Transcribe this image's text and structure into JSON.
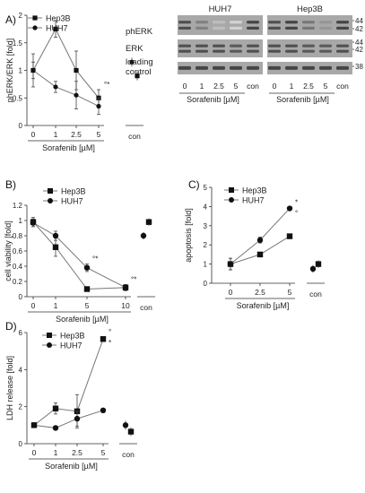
{
  "figure": {
    "panels": [
      {
        "id": "A",
        "label": "A)"
      },
      {
        "id": "B",
        "label": "B)"
      },
      {
        "id": "C",
        "label": "C)"
      },
      {
        "id": "D",
        "label": "D)"
      }
    ]
  },
  "chart_data": [
    {
      "panel": "A",
      "type": "line",
      "ylabel": "phERK/ERK [fold]",
      "xlabel": "Sorafenib [µM]",
      "categories": [
        "0",
        "1",
        "2.5",
        "5"
      ],
      "control_label": "con",
      "ylim": [
        0,
        2
      ],
      "yticks": [
        "0",
        "0.5",
        "1",
        "1.5",
        "2"
      ],
      "legend": [
        "Hep3B",
        "HUH7"
      ],
      "series": [
        {
          "name": "Hep3B",
          "marker": "square",
          "values": [
            1.0,
            1.75,
            1.0,
            0.5
          ],
          "err": [
            0.3,
            0.15,
            0.35,
            0.15
          ],
          "control": 0.9
        },
        {
          "name": "HUH7",
          "marker": "circle",
          "values": [
            1.0,
            0.7,
            0.55,
            0.35
          ],
          "err": [
            0.15,
            0.1,
            0.25,
            0.15
          ],
          "control": 1.15
        }
      ],
      "annotations": [
        {
          "x": "5",
          "text": "°*"
        }
      ]
    },
    {
      "panel": "B",
      "type": "line",
      "ylabel": "cell viability [fold]",
      "xlabel": "Sorafenib [µM]",
      "categories": [
        "0",
        "1",
        "5",
        "10"
      ],
      "control_label": "con",
      "ylim": [
        0,
        1.2
      ],
      "yticks": [
        "0",
        "0.2",
        "0.4",
        "0.6",
        "0.8",
        "1",
        "1.2"
      ],
      "legend": [
        "Hep3B",
        "HUH7"
      ],
      "series": [
        {
          "name": "Hep3B",
          "marker": "square",
          "values": [
            0.98,
            0.65,
            0.1,
            0.12
          ],
          "err": [
            0.06,
            0.12,
            0.02,
            0.04
          ],
          "control": 0.98
        },
        {
          "name": "HUH7",
          "marker": "circle",
          "values": [
            0.97,
            0.8,
            0.38,
            0.12
          ],
          "err": [
            0.05,
            0.06,
            0.05,
            0.04
          ],
          "control": 0.8
        }
      ],
      "annotations": [
        {
          "x": "5",
          "text": "°*"
        },
        {
          "x": "10",
          "text": "°*"
        }
      ]
    },
    {
      "panel": "C",
      "type": "line",
      "ylabel": "apoptosis [fold]",
      "xlabel": "Sorafenib [µM]",
      "categories": [
        "0",
        "2.5",
        "5"
      ],
      "control_label": "con",
      "ylim": [
        0,
        5
      ],
      "yticks": [
        "0",
        "1",
        "2",
        "3",
        "4",
        "5"
      ],
      "legend": [
        "Hep3B",
        "HUH7"
      ],
      "series": [
        {
          "name": "Hep3B",
          "marker": "square",
          "values": [
            1.0,
            1.5,
            2.45
          ],
          "err": [
            0.3,
            0.1,
            0.05
          ],
          "control": 1.0
        },
        {
          "name": "HUH7",
          "marker": "circle",
          "values": [
            1.0,
            2.25,
            3.9
          ],
          "err": [
            0.3,
            0.15,
            0.05
          ],
          "control": 0.75
        }
      ],
      "annotations": [
        {
          "x": "5",
          "text": "*"
        },
        {
          "x": "5",
          "text": "°"
        }
      ]
    },
    {
      "panel": "D",
      "type": "line",
      "ylabel": "LDH release [fold]",
      "xlabel": "Sorafenib [µM]",
      "categories": [
        "0",
        "1",
        "2.5",
        "5"
      ],
      "control_label": "con",
      "ylim": [
        0,
        6
      ],
      "yticks": [
        "0",
        "2",
        "4",
        "6"
      ],
      "legend": [
        "Hep3B",
        "HUH7"
      ],
      "series": [
        {
          "name": "Hep3B",
          "marker": "square",
          "values": [
            1.0,
            1.9,
            1.75,
            5.65
          ],
          "err": [
            0.05,
            0.3,
            0.9,
            0.1
          ],
          "control": 0.65
        },
        {
          "name": "HUH7",
          "marker": "circle",
          "values": [
            1.0,
            0.85,
            1.35,
            1.8
          ],
          "err": [
            0.05,
            0.05,
            0.4,
            0.05
          ],
          "control": 1.0
        }
      ],
      "annotations": [
        {
          "x": "5",
          "text": "°"
        },
        {
          "x": "5",
          "text": "*"
        }
      ]
    }
  ],
  "blot": {
    "groups": [
      "HUH7",
      "Hep3B"
    ],
    "rows": [
      "phERK",
      "ERK",
      "loading control"
    ],
    "lanes": [
      "0",
      "1",
      "2.5",
      "5",
      "con"
    ],
    "xlabel": "Sorafenib [µM]",
    "mw": [
      "44",
      "42",
      "44",
      "42",
      "38"
    ],
    "intensity": {
      "HUH7": {
        "phERK": [
          0.8,
          0.55,
          0.25,
          0.15,
          0.85
        ],
        "ERK": [
          0.8,
          0.8,
          0.8,
          0.75,
          0.8
        ],
        "loading control": [
          0.85,
          0.85,
          0.85,
          0.85,
          0.85
        ]
      },
      "Hep3B": {
        "phERK": [
          0.8,
          0.85,
          0.6,
          0.45,
          0.85
        ],
        "ERK": [
          0.8,
          0.8,
          0.75,
          0.75,
          0.8
        ],
        "loading control": [
          0.85,
          0.85,
          0.85,
          0.85,
          0.85
        ]
      }
    }
  }
}
